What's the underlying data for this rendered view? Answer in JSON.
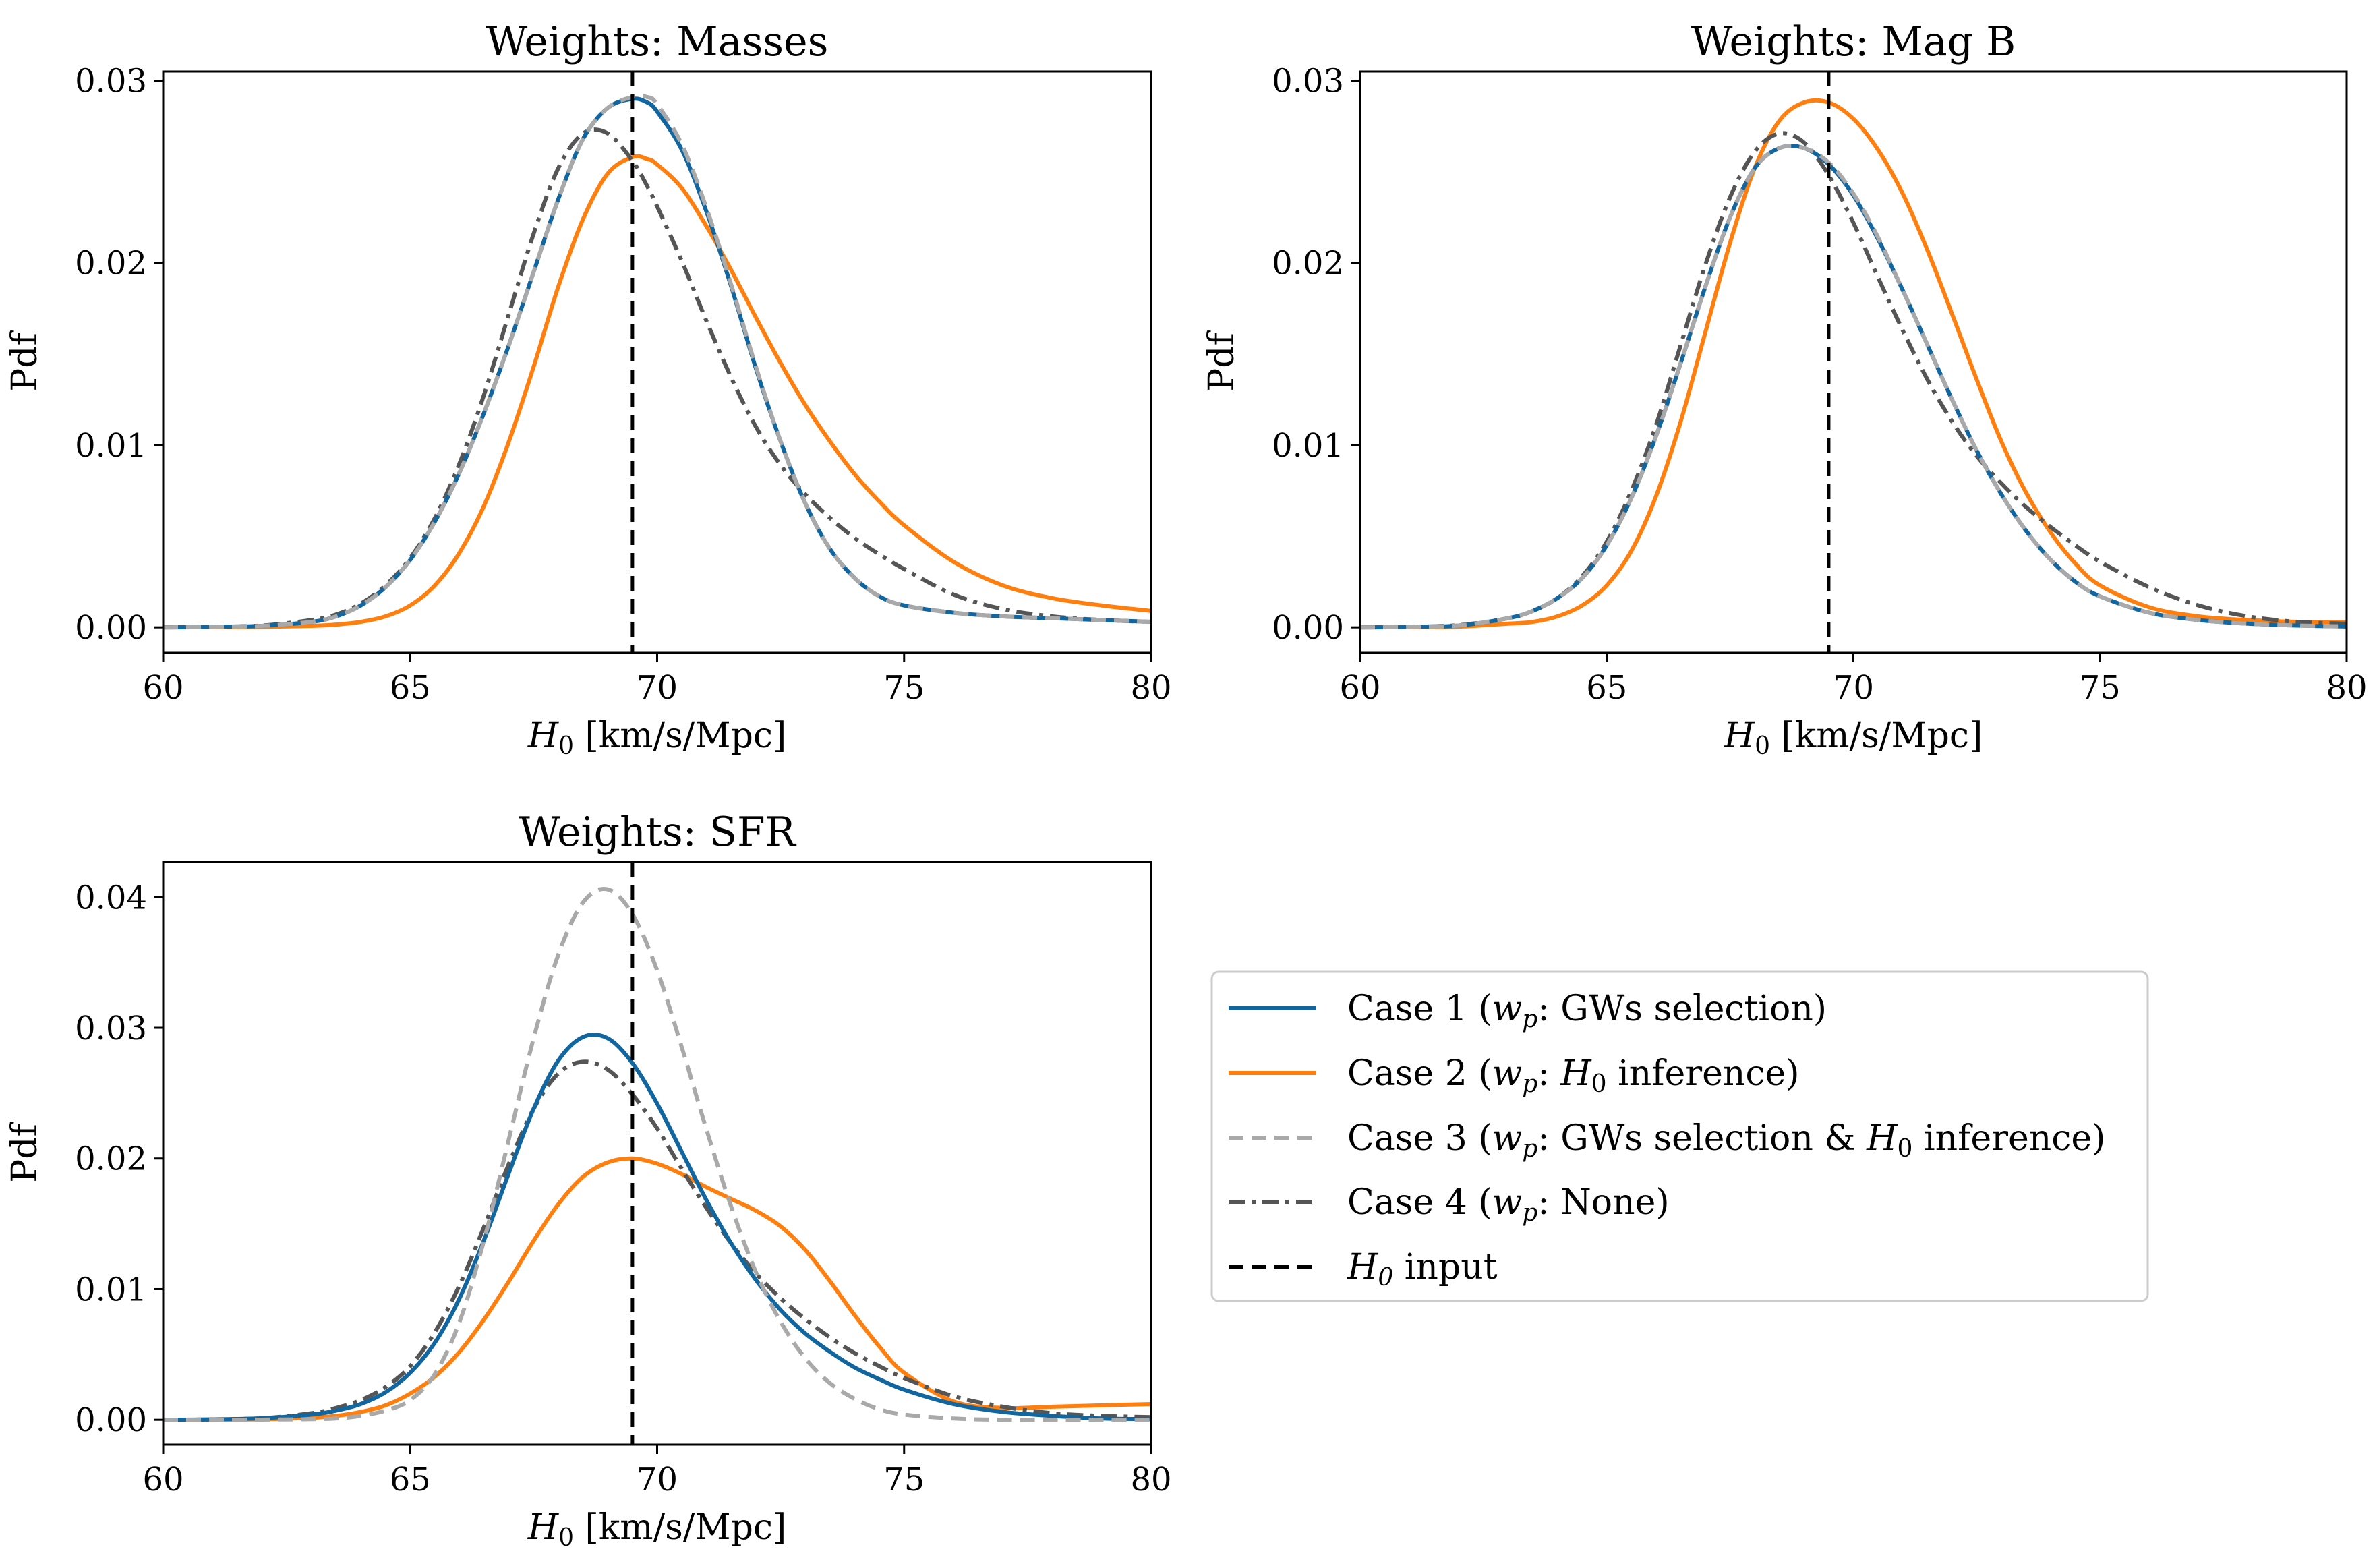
{
  "figure": {
    "legend": {
      "entries": [
        {
          "series": "case1",
          "prefix": "Case 1 (",
          "var": "w",
          "var_sub": "p",
          "suffix": ": GWs selection)"
        },
        {
          "series": "case2",
          "prefix": "Case 2 (",
          "var": "w",
          "var_sub": "p",
          "mid": ": ",
          "var2": "H",
          "var2_sub": "0",
          "suffix": " inference)"
        },
        {
          "series": "case3",
          "prefix": "Case 3 (",
          "var": "w",
          "var_sub": "p",
          "mid": ": GWs selection & ",
          "var2": "H",
          "var2_sub": "0",
          "suffix": " inference)"
        },
        {
          "series": "case4",
          "prefix": "Case 4 (",
          "var": "w",
          "var_sub": "p",
          "suffix": ": None)"
        },
        {
          "series": "input",
          "prefix": "",
          "var": "H",
          "var_sub": "0",
          "suffix": " input"
        }
      ]
    },
    "styles": {
      "case1": {
        "color": "#1166a0",
        "dash": "none"
      },
      "case2": {
        "color": "#ff7f0e",
        "dash": "none"
      },
      "case3": {
        "color": "#a9a9a9",
        "dash": "dashed"
      },
      "case4": {
        "color": "#555555",
        "dash": "dashdot"
      },
      "input": {
        "color": "#000000",
        "dash": "dashed"
      }
    }
  },
  "chart_data": [
    {
      "type": "line",
      "title": "Weights: Masses",
      "xlabel_var": "H",
      "xlabel_sub": "0",
      "xlabel_unit": " [km/s/Mpc]",
      "ylabel": "Pdf",
      "xlim": [
        60,
        80
      ],
      "ylim": [
        -0.0014,
        0.0305
      ],
      "xticks": [
        60,
        65,
        70,
        75,
        80
      ],
      "xtick_labels": [
        "60",
        "65",
        "70",
        "75",
        "80"
      ],
      "yticks": [
        0.0,
        0.01,
        0.02,
        0.03
      ],
      "ytick_labels": [
        "0.00",
        "0.01",
        "0.02",
        "0.03"
      ],
      "vline": 69.5,
      "x": [
        60,
        61,
        62,
        63,
        63.5,
        64,
        64.5,
        65,
        65.5,
        66,
        66.5,
        67,
        67.5,
        68,
        68.5,
        69,
        69.5,
        69.8,
        70,
        70.5,
        71,
        71.5,
        72,
        72.5,
        73,
        73.5,
        74,
        74.5,
        75,
        76,
        77,
        78,
        79,
        80
      ],
      "series": [
        {
          "key": "case1",
          "name": "Case 1",
          "values": [
            0,
            2e-05,
            8e-05,
            0.0003,
            0.0006,
            0.0012,
            0.0022,
            0.0037,
            0.0058,
            0.0085,
            0.0118,
            0.0155,
            0.0195,
            0.0235,
            0.0268,
            0.0285,
            0.029,
            0.0288,
            0.0283,
            0.0262,
            0.0228,
            0.0187,
            0.0142,
            0.0102,
            0.0068,
            0.0043,
            0.0027,
            0.0017,
            0.0012,
            0.0008,
            0.0006,
            0.0005,
            0.0004,
            0.0003
          ]
        },
        {
          "key": "case2",
          "name": "Case 2",
          "values": [
            0,
            1e-05,
            3e-05,
            8e-05,
            0.00015,
            0.0003,
            0.0006,
            0.0012,
            0.0023,
            0.0041,
            0.0067,
            0.0102,
            0.0143,
            0.0187,
            0.0224,
            0.0249,
            0.0258,
            0.0257,
            0.0254,
            0.0241,
            0.022,
            0.0196,
            0.017,
            0.0145,
            0.0122,
            0.0102,
            0.0084,
            0.0069,
            0.0056,
            0.0036,
            0.0023,
            0.0016,
            0.0012,
            0.0009
          ]
        },
        {
          "key": "case3",
          "name": "Case 3",
          "values": [
            0,
            2e-05,
            8e-05,
            0.0003,
            0.0006,
            0.0012,
            0.0022,
            0.0037,
            0.0058,
            0.0085,
            0.0118,
            0.0155,
            0.0195,
            0.0235,
            0.0268,
            0.0285,
            0.0291,
            0.0291,
            0.0287,
            0.0265,
            0.023,
            0.0188,
            0.0143,
            0.0102,
            0.0068,
            0.0043,
            0.0027,
            0.0017,
            0.0012,
            0.0008,
            0.0006,
            0.0005,
            0.0004,
            0.0003
          ]
        },
        {
          "key": "case4",
          "name": "Case 4",
          "values": [
            0,
            3e-05,
            0.0001,
            0.0004,
            0.0007,
            0.0013,
            0.0023,
            0.0038,
            0.006,
            0.009,
            0.0128,
            0.0172,
            0.0216,
            0.0252,
            0.0271,
            0.0271,
            0.0256,
            0.0242,
            0.0231,
            0.0201,
            0.0168,
            0.0137,
            0.011,
            0.0089,
            0.0073,
            0.006,
            0.0049,
            0.004,
            0.0032,
            0.0018,
            0.001,
            0.0006,
            0.0004,
            0.0003
          ]
        }
      ]
    },
    {
      "type": "line",
      "title": "Weights: Mag B",
      "xlabel_var": "H",
      "xlabel_sub": "0",
      "xlabel_unit": " [km/s/Mpc]",
      "ylabel": "Pdf",
      "xlim": [
        60,
        80
      ],
      "ylim": [
        -0.0014,
        0.0305
      ],
      "xticks": [
        60,
        65,
        70,
        75,
        80
      ],
      "xtick_labels": [
        "60",
        "65",
        "70",
        "75",
        "80"
      ],
      "yticks": [
        0.0,
        0.01,
        0.02,
        0.03
      ],
      "ytick_labels": [
        "0.00",
        "0.01",
        "0.02",
        "0.03"
      ],
      "vline": 69.5,
      "x": [
        60,
        61,
        62,
        63,
        63.5,
        64,
        64.5,
        65,
        65.5,
        66,
        66.5,
        67,
        67.5,
        68,
        68.5,
        69,
        69.5,
        70,
        70.5,
        71,
        71.5,
        72,
        72.5,
        73,
        73.5,
        74,
        74.5,
        75,
        76,
        77,
        78,
        79,
        80
      ],
      "series": [
        {
          "key": "case1",
          "name": "Case 1",
          "values": [
            0,
            2e-05,
            0.0001,
            0.0005,
            0.0009,
            0.0016,
            0.0027,
            0.0045,
            0.0071,
            0.0105,
            0.0145,
            0.0187,
            0.0225,
            0.0252,
            0.0263,
            0.0263,
            0.0254,
            0.0237,
            0.0213,
            0.0185,
            0.0155,
            0.0125,
            0.0097,
            0.0073,
            0.0053,
            0.0037,
            0.0025,
            0.0017,
            0.0008,
            0.0004,
            0.0002,
            0.0001,
            5e-05
          ]
        },
        {
          "key": "case2",
          "name": "Case 2",
          "values": [
            0,
            1e-05,
            4e-05,
            0.0002,
            0.0003,
            0.0006,
            0.0012,
            0.0023,
            0.0042,
            0.0072,
            0.0113,
            0.0162,
            0.0211,
            0.0252,
            0.0278,
            0.0288,
            0.0288,
            0.0279,
            0.0262,
            0.0238,
            0.0207,
            0.0172,
            0.0136,
            0.0102,
            0.0074,
            0.0052,
            0.0035,
            0.0023,
            0.0011,
            0.0006,
            0.0004,
            0.0003,
            0.0003
          ]
        },
        {
          "key": "case3",
          "name": "Case 3",
          "values": [
            0,
            2e-05,
            0.0001,
            0.0005,
            0.0009,
            0.0016,
            0.0027,
            0.0045,
            0.0071,
            0.0105,
            0.0145,
            0.0187,
            0.0225,
            0.0252,
            0.0263,
            0.0263,
            0.0255,
            0.0238,
            0.0214,
            0.0185,
            0.0155,
            0.0125,
            0.0097,
            0.0073,
            0.0053,
            0.0037,
            0.0025,
            0.0017,
            0.0008,
            0.0004,
            0.0002,
            0.0001,
            5e-05
          ]
        },
        {
          "key": "case4",
          "name": "Case 4",
          "values": [
            0,
            3e-05,
            0.00012,
            0.0005,
            0.0009,
            0.0016,
            0.0028,
            0.0047,
            0.0075,
            0.0111,
            0.0155,
            0.0199,
            0.0236,
            0.0261,
            0.0271,
            0.0266,
            0.0248,
            0.0222,
            0.0192,
            0.0163,
            0.0136,
            0.0113,
            0.0094,
            0.0079,
            0.0066,
            0.0055,
            0.0045,
            0.0036,
            0.0022,
            0.0012,
            0.0006,
            0.0003,
            0.0002
          ]
        }
      ]
    },
    {
      "type": "line",
      "title": "Weights: SFR",
      "xlabel_var": "H",
      "xlabel_sub": "0",
      "xlabel_unit": " [km/s/Mpc]",
      "ylabel": "Pdf",
      "xlim": [
        60,
        80
      ],
      "ylim": [
        -0.0019,
        0.0427
      ],
      "xticks": [
        60,
        65,
        70,
        75,
        80
      ],
      "xtick_labels": [
        "60",
        "65",
        "70",
        "75",
        "80"
      ],
      "yticks": [
        0.0,
        0.01,
        0.02,
        0.03,
        0.04
      ],
      "ytick_labels": [
        "0.00",
        "0.01",
        "0.02",
        "0.03",
        "0.04"
      ],
      "vline": 69.5,
      "x": [
        60,
        61,
        62,
        63,
        63.5,
        64,
        64.5,
        65,
        65.5,
        66,
        66.5,
        67,
        67.5,
        68,
        68.5,
        69,
        69.5,
        70,
        70.5,
        71,
        71.5,
        72,
        72.5,
        73,
        73.5,
        74,
        74.5,
        75,
        76,
        77,
        78,
        79,
        80
      ],
      "series": [
        {
          "key": "case1",
          "name": "Case 1",
          "values": [
            0,
            3e-05,
            0.00012,
            0.0004,
            0.0007,
            0.0012,
            0.0021,
            0.0036,
            0.0059,
            0.0093,
            0.0138,
            0.0189,
            0.0238,
            0.0275,
            0.0293,
            0.0292,
            0.0273,
            0.0242,
            0.0205,
            0.0168,
            0.0135,
            0.0107,
            0.0084,
            0.0066,
            0.0052,
            0.004,
            0.0031,
            0.0023,
            0.0012,
            0.0006,
            0.0003,
            0.0001,
            5e-05
          ]
        },
        {
          "key": "case2",
          "name": "Case 2",
          "values": [
            0,
            1e-05,
            4e-05,
            0.00015,
            0.0003,
            0.0006,
            0.0011,
            0.002,
            0.0033,
            0.0052,
            0.0077,
            0.0106,
            0.0137,
            0.0165,
            0.0186,
            0.0197,
            0.02,
            0.0196,
            0.0188,
            0.0178,
            0.0169,
            0.016,
            0.0148,
            0.013,
            0.0106,
            0.008,
            0.0056,
            0.0036,
            0.0014,
            0.0009,
            0.001,
            0.0011,
            0.0012
          ]
        },
        {
          "key": "case3",
          "name": "Case 3",
          "values": [
            0,
            0,
            1e-05,
            5e-05,
            0.0001,
            0.0003,
            0.0007,
            0.0015,
            0.0035,
            0.0075,
            0.0138,
            0.0215,
            0.0292,
            0.0356,
            0.0396,
            0.0406,
            0.0387,
            0.0344,
            0.0285,
            0.0222,
            0.0163,
            0.0113,
            0.0075,
            0.0047,
            0.0028,
            0.0016,
            0.0008,
            0.0004,
            0.0001,
            0,
            0,
            0,
            0
          ]
        },
        {
          "key": "case4",
          "name": "Case 4",
          "values": [
            0,
            3e-05,
            0.00012,
            0.0005,
            0.0009,
            0.0015,
            0.0025,
            0.0041,
            0.0067,
            0.0103,
            0.0148,
            0.0196,
            0.0238,
            0.0265,
            0.0274,
            0.0268,
            0.0249,
            0.0223,
            0.0192,
            0.0162,
            0.0135,
            0.0112,
            0.0093,
            0.0077,
            0.0063,
            0.0051,
            0.0041,
            0.0032,
            0.0018,
            0.001,
            0.0005,
            0.0003,
            0.0002
          ]
        }
      ]
    }
  ]
}
